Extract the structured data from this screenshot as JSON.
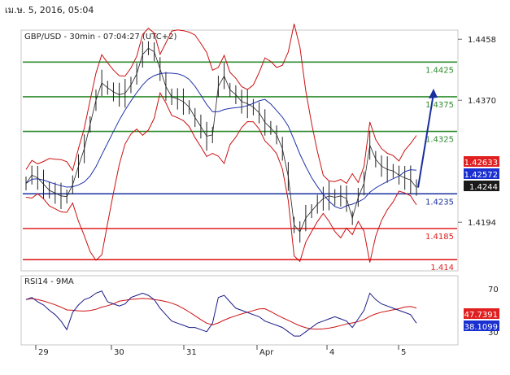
{
  "header": {
    "date": "เม.ษ. 5, 2016, 05:04"
  },
  "chart_data": {
    "type": "line",
    "title": "GBP/USD - 30min - 07:04:27 (UTC+2)",
    "price_axis": {
      "ylim": [
        1.4125,
        1.447
      ],
      "ticks": [
        "1.4458",
        "1.4370",
        "1.4194"
      ]
    },
    "x_labels": [
      "29",
      "30",
      "31",
      "Apr",
      "4",
      "5"
    ],
    "levels": [
      {
        "label": "1.4425",
        "value": 1.4425,
        "color": "#2e8b2e"
      },
      {
        "label": "1.4375",
        "value": 1.4375,
        "color": "#2e8b2e"
      },
      {
        "label": "1.4325",
        "value": 1.4325,
        "color": "#2e8b2e"
      },
      {
        "label": "1.4235",
        "value": 1.4235,
        "color": "#1a2f9e"
      },
      {
        "label": "1.4185",
        "value": 1.4185,
        "color": "#e02020"
      },
      {
        "label": "1.414",
        "value": 1.414,
        "color": "#e02020"
      }
    ],
    "price_tags": [
      {
        "label": "1.42633",
        "value": 1.42633,
        "bg": "#e02020"
      },
      {
        "label": "1.42572",
        "value": 1.42572,
        "bg": "#1a2fd0"
      },
      {
        "label": "1.4244",
        "value": 1.4244,
        "bg": "#1a1a1a"
      }
    ],
    "price_series": [
      1.425,
      1.4262,
      1.4258,
      1.4249,
      1.424,
      1.4236,
      1.4232,
      1.4231,
      1.4248,
      1.4275,
      1.43,
      1.4335,
      1.437,
      1.4395,
      1.4388,
      1.4382,
      1.4378,
      1.438,
      1.4392,
      1.4408,
      1.4436,
      1.4445,
      1.444,
      1.4415,
      1.439,
      1.4375,
      1.4372,
      1.4368,
      1.436,
      1.4345,
      1.4332,
      1.4318,
      1.432,
      1.439,
      1.4405,
      1.4385,
      1.4378,
      1.4368,
      1.4365,
      1.436,
      1.4352,
      1.4338,
      1.433,
      1.432,
      1.43,
      1.426,
      1.419,
      1.418,
      1.42,
      1.421,
      1.422,
      1.4228,
      1.4232,
      1.423,
      1.4232,
      1.4228,
      1.42,
      1.423,
      1.425,
      1.4305,
      1.4285,
      1.4275,
      1.427,
      1.4268,
      1.4262,
      1.4258,
      1.4255,
      1.4244
    ],
    "forecast_arrow": {
      "from": 1.4244,
      "to": 1.4375
    },
    "rsi": {
      "title": "RSI14 - 9MA",
      "ylim": [
        20,
        80
      ],
      "ticks": [
        "70",
        "30"
      ],
      "tags": [
        {
          "label": "47.7391",
          "value": 47.7391,
          "bg": "#e02020"
        },
        {
          "label": "38.1099",
          "value": 38.1099,
          "bg": "#1a2fd0"
        }
      ],
      "series": [
        60,
        62,
        58,
        55,
        50,
        46,
        40,
        32,
        48,
        55,
        60,
        62,
        66,
        68,
        58,
        56,
        54,
        56,
        62,
        64,
        66,
        64,
        60,
        52,
        46,
        40,
        38,
        36,
        34,
        34,
        32,
        30,
        38,
        62,
        64,
        58,
        52,
        50,
        48,
        46,
        44,
        40,
        38,
        36,
        34,
        30,
        26,
        26,
        30,
        34,
        38,
        40,
        42,
        44,
        42,
        40,
        34,
        42,
        50,
        66,
        60,
        56,
        54,
        52,
        50,
        48,
        46,
        38
      ]
    }
  }
}
